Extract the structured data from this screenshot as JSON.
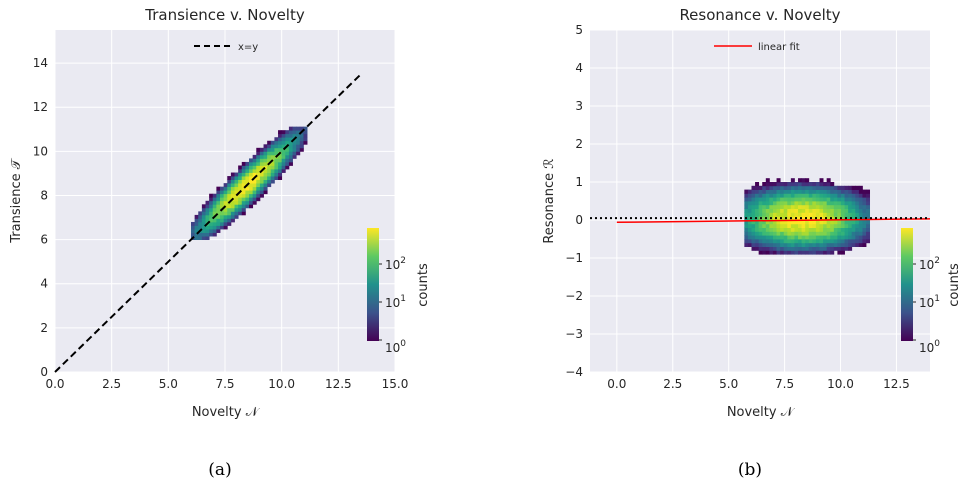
{
  "chart_data": [
    {
      "type": "heatmap",
      "panel_label": "(a)",
      "title": "Transience v. Novelty",
      "xlabel": "Novelty 𝒩",
      "ylabel": "Transience 𝒯",
      "xlim": [
        0,
        15
      ],
      "ylim": [
        0,
        15.5
      ],
      "xticks": [
        0,
        2.5,
        5,
        7.5,
        10,
        12.5,
        15
      ],
      "xtick_labels": [
        "0.0",
        "2.5",
        "5.0",
        "7.5",
        "10.0",
        "12.5",
        "15.0"
      ],
      "yticks": [
        0,
        2,
        4,
        6,
        8,
        10,
        12,
        14
      ],
      "ytick_labels": [
        "0",
        "2",
        "4",
        "6",
        "8",
        "10",
        "12",
        "14"
      ],
      "grid": true,
      "legend": {
        "placement": "top-center",
        "entries": [
          "x=y"
        ]
      },
      "series": [
        {
          "name": "x=y",
          "type": "line",
          "style": "dashed",
          "color": "#000000",
          "x": [
            0,
            13.5
          ],
          "y": [
            0,
            13.5
          ]
        }
      ],
      "density": {
        "shape": "elongated ellipse along x=y",
        "center": [
          8.4,
          8.4
        ],
        "x_range": [
          6.0,
          11.1
        ],
        "y_range": [
          6.0,
          11.1
        ],
        "peak_count": 600
      },
      "colorbar": {
        "label": "counts",
        "scale": "log",
        "colormap": "viridis",
        "tick_labels": [
          "10^0",
          "10^1",
          "10^2"
        ],
        "range": [
          1,
          600
        ]
      }
    },
    {
      "type": "heatmap",
      "panel_label": "(b)",
      "title": "Resonance v. Novelty",
      "xlabel": "Novelty 𝒩",
      "ylabel": "Resonance ℛ",
      "xlim": [
        -1.2,
        14
      ],
      "ylim": [
        -4,
        5
      ],
      "xticks": [
        0,
        2.5,
        5,
        7.5,
        10,
        12.5
      ],
      "xtick_labels": [
        "0.0",
        "2.5",
        "5.0",
        "7.5",
        "10.0",
        "12.5"
      ],
      "yticks": [
        -4,
        -3,
        -2,
        -1,
        0,
        1,
        2,
        3,
        4,
        5
      ],
      "ytick_labels": [
        "−4",
        "−3",
        "−2",
        "−1",
        "0",
        "1",
        "2",
        "3",
        "4",
        "5"
      ],
      "grid": true,
      "legend": {
        "placement": "top-center",
        "entries": [
          "linear fit"
        ]
      },
      "series": [
        {
          "name": "linear fit",
          "type": "line",
          "color": "#ff0000",
          "x": [
            0,
            14
          ],
          "y": [
            -0.06,
            0.03
          ]
        },
        {
          "type": "hline",
          "style": "dotted",
          "color": "#000000",
          "y": 0.05
        }
      ],
      "density": {
        "shape": "horizontal blob",
        "center": [
          8.2,
          0.0
        ],
        "x_range": [
          5.7,
          11.3
        ],
        "y_range": [
          -0.9,
          1.4
        ],
        "peak_count": 600
      },
      "colorbar": {
        "label": "counts",
        "scale": "log",
        "colormap": "viridis",
        "tick_labels": [
          "10^0",
          "10^1",
          "10^2"
        ],
        "range": [
          1,
          600
        ]
      }
    }
  ]
}
